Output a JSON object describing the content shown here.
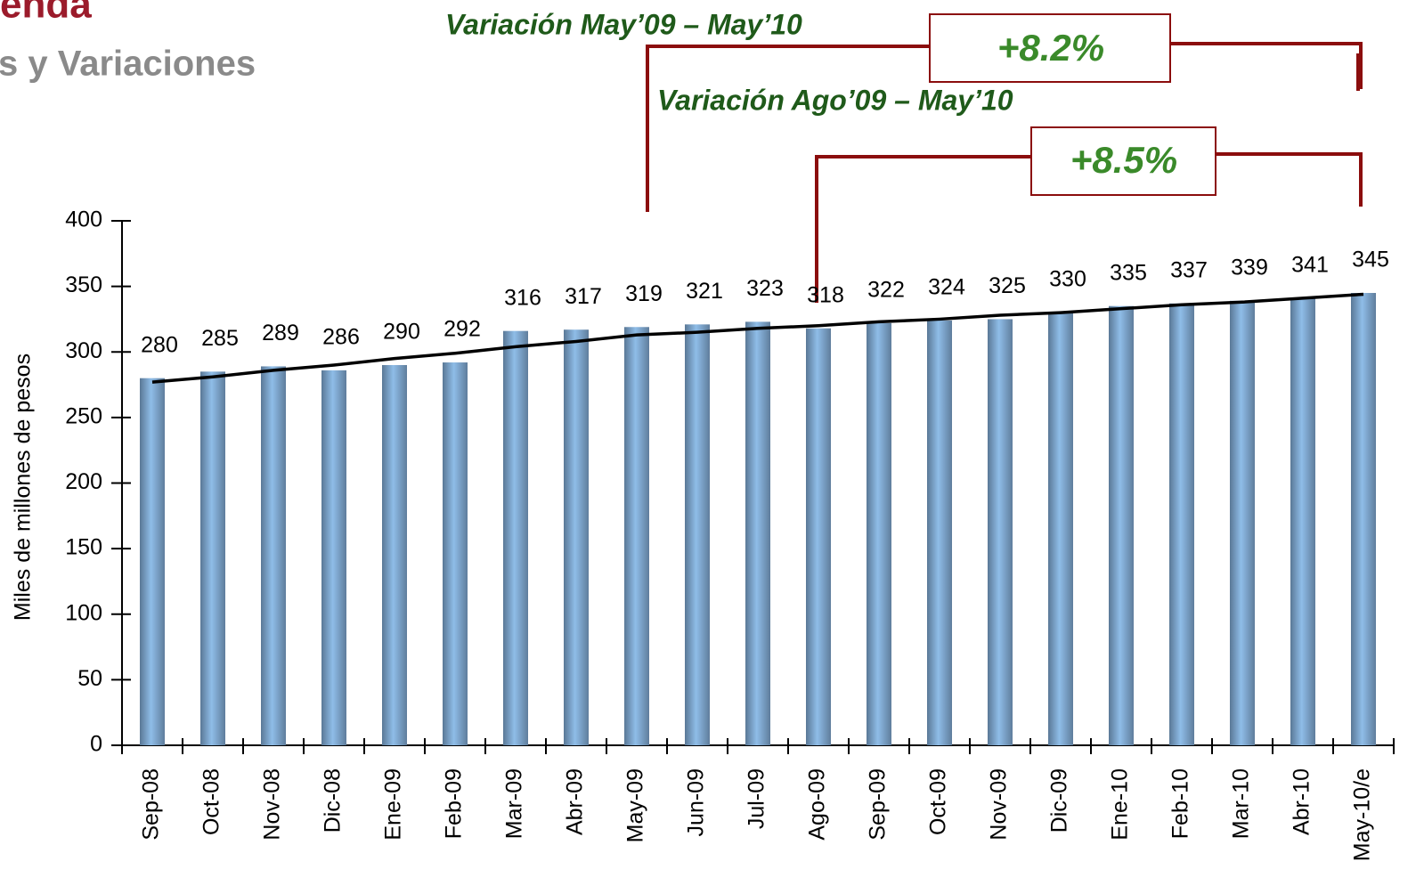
{
  "header": {
    "title": "enda",
    "subtitle": "s y Variaciones"
  },
  "chart_data": {
    "type": "bar",
    "y_label": "Miles de millones de pesos",
    "categories": [
      "Sep-08",
      "Oct-08",
      "Nov-08",
      "Dic-08",
      "Ene-09",
      "Feb-09",
      "Mar-09",
      "Abr-09",
      "May-09",
      "Jun-09",
      "Jul-09",
      "Ago-09",
      "Sep-09",
      "Oct-09",
      "Nov-09",
      "Dic-09",
      "Ene-10",
      "Feb-10",
      "Mar-10",
      "Abr-10",
      "May-10/e"
    ],
    "series": [
      {
        "type": "bar",
        "color": "#8fbde8",
        "values": [
          280,
          285,
          289,
          286,
          290,
          292,
          316,
          317,
          319,
          321,
          323,
          318,
          322,
          324,
          325,
          330,
          335,
          337,
          339,
          341,
          345
        ]
      },
      {
        "type": "line",
        "color": "#000000",
        "values": [
          277,
          281,
          286,
          290,
          295,
          299,
          304,
          308,
          313,
          315,
          318,
          320,
          323,
          325,
          328,
          330,
          333,
          336,
          338,
          341,
          344
        ]
      }
    ],
    "ylim": [
      0,
      400
    ],
    "yticks": [
      0,
      50,
      100,
      150,
      200,
      250,
      300,
      350,
      400
    ],
    "annotations": [
      {
        "text": "Variación May’09 – May’10",
        "value_label": "+8.2%"
      },
      {
        "text": "Variación Ago’09 – May’10",
        "value_label": "+8.5%"
      }
    ]
  }
}
